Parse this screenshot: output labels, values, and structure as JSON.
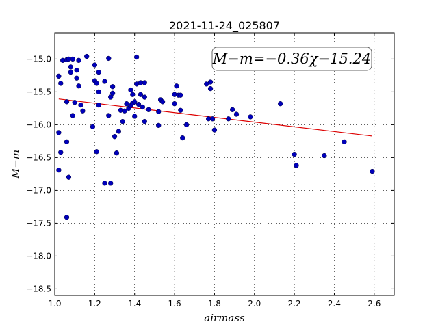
{
  "chart_data": {
    "type": "scatter",
    "title": "2021-11-24_025807",
    "xlabel": "airmass",
    "ylabel": "M−m",
    "xlim": [
      1.0,
      2.7
    ],
    "ylim": [
      -18.6,
      -14.6
    ],
    "y_inverted": true,
    "grid": true,
    "grid_style": "dotted",
    "x_ticks": [
      1.0,
      1.2,
      1.4,
      1.6,
      1.8,
      2.0,
      2.2,
      2.4,
      2.6
    ],
    "x_tick_labels": [
      "1.0",
      "1.2",
      "1.4",
      "1.6",
      "1.8",
      "2.0",
      "2.2",
      "2.4",
      "2.6"
    ],
    "y_ticks": [
      -15.0,
      -15.5,
      -16.0,
      -16.5,
      -17.0,
      -17.5,
      -18.0,
      -18.5
    ],
    "y_tick_labels": [
      "−15.0",
      "−15.5",
      "−16.0",
      "−16.5",
      "−17.0",
      "−17.5",
      "−18.0",
      "−18.5"
    ],
    "annotation": "M−m=−0.36χ−15.24",
    "fit": {
      "slope": -0.36,
      "intercept": -15.24,
      "x_range": [
        1.02,
        2.59
      ],
      "color": "#dd0000"
    },
    "marker_color": "#0000bb",
    "points": [
      [
        1.02,
        -15.26
      ],
      [
        1.03,
        -15.37
      ],
      [
        1.04,
        -15.02
      ],
      [
        1.06,
        -15.01
      ],
      [
        1.07,
        -15.0
      ],
      [
        1.08,
        -15.2
      ],
      [
        1.08,
        -15.12
      ],
      [
        1.09,
        -15.0
      ],
      [
        1.11,
        -15.29
      ],
      [
        1.11,
        -15.17
      ],
      [
        1.12,
        -15.02
      ],
      [
        1.12,
        -15.41
      ],
      [
        1.06,
        -15.65
      ],
      [
        1.1,
        -15.66
      ],
      [
        1.13,
        -15.7
      ],
      [
        1.14,
        -15.79
      ],
      [
        1.09,
        -15.86
      ],
      [
        1.16,
        -14.96
      ],
      [
        1.19,
        -16.03
      ],
      [
        1.2,
        -15.09
      ],
      [
        1.2,
        -15.33
      ],
      [
        1.21,
        -15.37
      ],
      [
        1.22,
        -15.2
      ],
      [
        1.22,
        -15.5
      ],
      [
        1.22,
        -15.7
      ],
      [
        1.25,
        -15.34
      ],
      [
        1.27,
        -14.99
      ],
      [
        1.27,
        -15.86
      ],
      [
        1.28,
        -15.58
      ],
      [
        1.29,
        -15.52
      ],
      [
        1.29,
        -15.42
      ],
      [
        1.02,
        -16.12
      ],
      [
        1.03,
        -16.42
      ],
      [
        1.06,
        -16.26
      ],
      [
        1.02,
        -16.69
      ],
      [
        1.07,
        -16.8
      ],
      [
        1.06,
        -17.41
      ],
      [
        1.21,
        -16.41
      ],
      [
        1.25,
        -16.89
      ],
      [
        1.28,
        -16.89
      ],
      [
        1.3,
        -16.18
      ],
      [
        1.31,
        -16.43
      ],
      [
        1.32,
        -16.1
      ],
      [
        1.33,
        -15.78
      ],
      [
        1.34,
        -15.95
      ],
      [
        1.35,
        -15.79
      ],
      [
        1.36,
        -15.68
      ],
      [
        1.37,
        -15.75
      ],
      [
        1.38,
        -15.47
      ],
      [
        1.38,
        -15.71
      ],
      [
        1.39,
        -15.54
      ],
      [
        1.39,
        -15.67
      ],
      [
        1.4,
        -15.65
      ],
      [
        1.4,
        -15.87
      ],
      [
        1.41,
        -15.38
      ],
      [
        1.41,
        -14.97
      ],
      [
        1.42,
        -15.69
      ],
      [
        1.43,
        -15.54
      ],
      [
        1.43,
        -15.36
      ],
      [
        1.44,
        -15.73
      ],
      [
        1.45,
        -15.36
      ],
      [
        1.45,
        -15.58
      ],
      [
        1.45,
        -15.95
      ],
      [
        1.47,
        -15.77
      ],
      [
        1.52,
        -16.01
      ],
      [
        1.52,
        -15.8
      ],
      [
        1.53,
        -15.62
      ],
      [
        1.54,
        -15.65
      ],
      [
        1.6,
        -15.68
      ],
      [
        1.6,
        -15.54
      ],
      [
        1.61,
        -15.41
      ],
      [
        1.62,
        -15.55
      ],
      [
        1.63,
        -15.55
      ],
      [
        1.63,
        -15.78
      ],
      [
        1.64,
        -16.2
      ],
      [
        1.66,
        -16.0
      ],
      [
        1.76,
        -15.38
      ],
      [
        1.77,
        -15.91
      ],
      [
        1.78,
        -15.35
      ],
      [
        1.78,
        -15.45
      ],
      [
        1.79,
        -15.91
      ],
      [
        1.8,
        -16.08
      ],
      [
        1.87,
        -15.91
      ],
      [
        1.89,
        -15.77
      ],
      [
        1.91,
        -15.84
      ],
      [
        1.98,
        -15.88
      ],
      [
        2.13,
        -15.68
      ],
      [
        2.2,
        -16.45
      ],
      [
        2.21,
        -16.62
      ],
      [
        2.35,
        -16.47
      ],
      [
        2.45,
        -16.26
      ],
      [
        2.59,
        -16.71
      ]
    ]
  }
}
